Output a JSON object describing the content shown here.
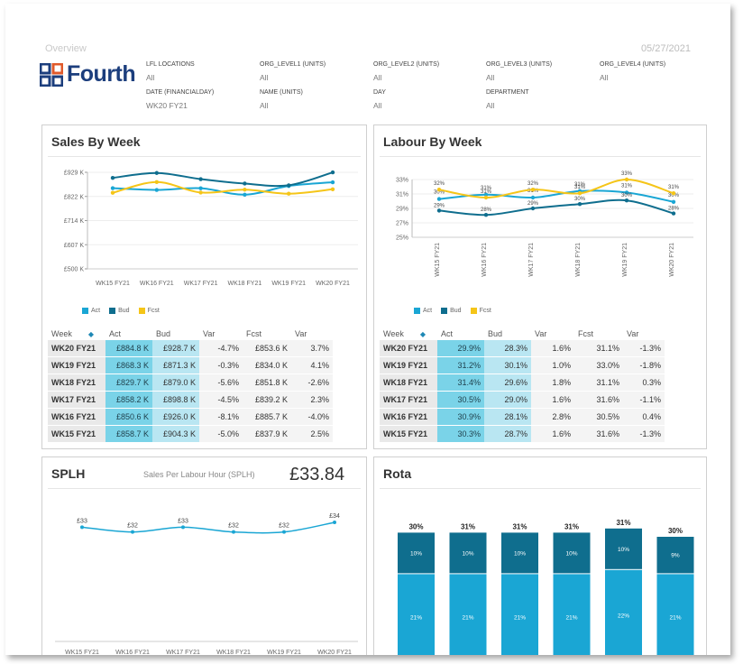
{
  "header": {
    "overview": "Overview",
    "date": "05/27/2021",
    "logo_text": "Fourth"
  },
  "filters": [
    {
      "label": "LFL LOCATIONS",
      "value": "All"
    },
    {
      "label": "ORG_LEVEL1 (UNITS)",
      "value": "All"
    },
    {
      "label": "ORG_LEVEL2 (UNITS)",
      "value": "All"
    },
    {
      "label": "ORG_LEVEL3 (UNITS)",
      "value": "All"
    },
    {
      "label": "ORG_LEVEL4 (UNITS)",
      "value": "All"
    },
    {
      "label": "DATE (FINANCIALDAY)",
      "value": "WK20 FY21"
    },
    {
      "label": "NAME (UNITS)",
      "value": "All"
    },
    {
      "label": "DAY",
      "value": "All"
    },
    {
      "label": "DEPARTMENT",
      "value": "All"
    }
  ],
  "sales": {
    "title": "Sales By Week",
    "legend": [
      "Act",
      "Bud",
      "Fcst"
    ],
    "table_headers": [
      "Week",
      "Act",
      "Bud",
      "Var",
      "Fcst",
      "Var"
    ],
    "rows": [
      [
        "WK20 FY21",
        "£884.8 K",
        "£928.7 K",
        "-4.7%",
        "£853.6 K",
        "3.7%"
      ],
      [
        "WK19 FY21",
        "£868.3 K",
        "£871.3 K",
        "-0.3%",
        "£834.0 K",
        "4.1%"
      ],
      [
        "WK18 FY21",
        "£829.7 K",
        "£879.0 K",
        "-5.6%",
        "£851.8 K",
        "-2.6%"
      ],
      [
        "WK17 FY21",
        "£858.2 K",
        "£898.8 K",
        "-4.5%",
        "£839.2 K",
        "2.3%"
      ],
      [
        "WK16 FY21",
        "£850.6 K",
        "£926.0 K",
        "-8.1%",
        "£885.7 K",
        "-4.0%"
      ],
      [
        "WK15 FY21",
        "£858.7 K",
        "£904.3 K",
        "-5.0%",
        "£837.9 K",
        "2.5%"
      ]
    ]
  },
  "labour": {
    "title": "Labour By Week",
    "legend": [
      "Act",
      "Bud",
      "Fcst"
    ],
    "table_headers": [
      "Week",
      "Act",
      "Bud",
      "Var",
      "Fcst",
      "Var"
    ],
    "rows": [
      [
        "WK20 FY21",
        "29.9%",
        "28.3%",
        "1.6%",
        "31.1%",
        "-1.3%"
      ],
      [
        "WK19 FY21",
        "31.2%",
        "30.1%",
        "1.0%",
        "33.0%",
        "-1.8%"
      ],
      [
        "WK18 FY21",
        "31.4%",
        "29.6%",
        "1.8%",
        "31.1%",
        "0.3%"
      ],
      [
        "WK17 FY21",
        "30.5%",
        "29.0%",
        "1.6%",
        "31.6%",
        "-1.1%"
      ],
      [
        "WK16 FY21",
        "30.9%",
        "28.1%",
        "2.8%",
        "30.5%",
        "0.4%"
      ],
      [
        "WK15 FY21",
        "30.3%",
        "28.7%",
        "1.6%",
        "31.6%",
        "-1.3%"
      ]
    ]
  },
  "splh": {
    "title": "SPLH",
    "subtitle": "Sales Per Labour Hour (SPLH)",
    "value": "£33.84"
  },
  "rota": {
    "title": "Rota"
  },
  "colors": {
    "act": "#1aa6d4",
    "bud": "#0f6e8e",
    "fcst": "#f5c518",
    "neg": "#e1242a",
    "logo": "#1c3e7d"
  },
  "chart_data": [
    {
      "type": "line",
      "title": "Sales By Week",
      "categories": [
        "WK15 FY21",
        "WK16 FY21",
        "WK17 FY21",
        "WK18 FY21",
        "WK19 FY21",
        "WK20 FY21"
      ],
      "y_ticks": [
        "£500 K",
        "£607 K",
        "£714 K",
        "£822 K",
        "£929 K"
      ],
      "ylim": [
        500,
        929
      ],
      "series": [
        {
          "name": "Act",
          "values": [
            858.7,
            850.6,
            858.2,
            829.7,
            868.3,
            884.8
          ]
        },
        {
          "name": "Bud",
          "values": [
            904.3,
            926.0,
            898.8,
            879.0,
            871.3,
            928.7
          ]
        },
        {
          "name": "Fcst",
          "values": [
            837.9,
            885.7,
            839.2,
            851.8,
            834.0,
            853.6
          ]
        }
      ],
      "legend_position": "bottom-left"
    },
    {
      "type": "line",
      "title": "Labour By Week",
      "categories": [
        "WK15 FY21",
        "WK16 FY21",
        "WK17 FY21",
        "WK18 FY21",
        "WK19 FY21",
        "WK20 FY21"
      ],
      "y_ticks": [
        "25%",
        "27%",
        "29%",
        "31%",
        "33%"
      ],
      "ylim": [
        25,
        33
      ],
      "series": [
        {
          "name": "Act",
          "values": [
            30.3,
            30.9,
            30.5,
            31.4,
            31.2,
            29.9
          ],
          "labels": [
            "30%",
            "31%",
            "31%",
            "31%",
            "31%",
            "30%"
          ]
        },
        {
          "name": "Bud",
          "values": [
            28.7,
            28.1,
            29.0,
            29.6,
            30.1,
            28.3
          ],
          "labels": [
            "29%",
            "28%",
            "29%",
            "30%",
            "30%",
            "28%"
          ]
        },
        {
          "name": "Fcst",
          "values": [
            31.6,
            30.5,
            31.6,
            31.1,
            33.0,
            31.1
          ],
          "labels": [
            "32%",
            "31%",
            "32%",
            "31%",
            "33%",
            "31%"
          ]
        }
      ],
      "legend_position": "bottom-left"
    },
    {
      "type": "line",
      "title": "SPLH",
      "categories": [
        "WK15 FY21",
        "WK16 FY21",
        "WK17 FY21",
        "WK18 FY21",
        "WK19 FY21",
        "WK20 FY21"
      ],
      "series": [
        {
          "values": [
            33,
            32,
            33,
            32,
            32,
            34
          ],
          "labels": [
            "£33",
            "£32",
            "£33",
            "£32",
            "£32",
            "£34"
          ]
        }
      ]
    },
    {
      "type": "bar",
      "title": "Rota",
      "stacked": true,
      "totals": [
        "30%",
        "31%",
        "31%",
        "31%",
        "31%",
        "30%"
      ],
      "series": [
        {
          "values": [
            21,
            21,
            21,
            21,
            22,
            21
          ],
          "labels": [
            "21%",
            "21%",
            "21%",
            "21%",
            "22%",
            "21%"
          ]
        },
        {
          "values": [
            10,
            10,
            10,
            10,
            10,
            9
          ],
          "labels": [
            "10%",
            "10%",
            "10%",
            "10%",
            "10%",
            "9%"
          ]
        }
      ]
    }
  ]
}
